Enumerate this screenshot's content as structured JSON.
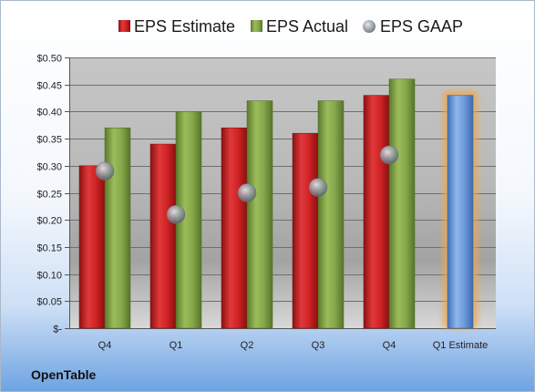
{
  "company": "OpenTable",
  "colors": {
    "estimate": "#cc2224",
    "actual": "#7fa043",
    "gaap": "#a9aeb6",
    "future_estimate": "#6d9bd8",
    "highlight": "#f2a54a"
  },
  "chart_data": {
    "type": "bar",
    "title": "",
    "xlabel": "",
    "ylabel": "",
    "ylim": [
      0,
      0.5
    ],
    "yticks": [
      0,
      0.05,
      0.1,
      0.15,
      0.2,
      0.25,
      0.3,
      0.35,
      0.4,
      0.45,
      0.5
    ],
    "ytick_labels": [
      "$-",
      "$0.05",
      "$0.10",
      "$0.15",
      "$0.20",
      "$0.25",
      "$0.30",
      "$0.35",
      "$0.40",
      "$0.45",
      "$0.50"
    ],
    "categories": [
      "Q4",
      "Q1",
      "Q2",
      "Q3",
      "Q4",
      "Q1 Estimate"
    ],
    "legend_position": "top",
    "grid": true,
    "series": [
      {
        "name": "EPS Estimate",
        "marker": "bar",
        "values": [
          0.3,
          0.34,
          0.37,
          0.36,
          0.43,
          0.43
        ]
      },
      {
        "name": "EPS Actual",
        "marker": "bar",
        "values": [
          0.37,
          0.4,
          0.42,
          0.42,
          0.46,
          null
        ]
      },
      {
        "name": "EPS GAAP",
        "marker": "circle",
        "values": [
          0.29,
          0.21,
          0.25,
          0.26,
          0.32,
          null
        ]
      }
    ]
  }
}
